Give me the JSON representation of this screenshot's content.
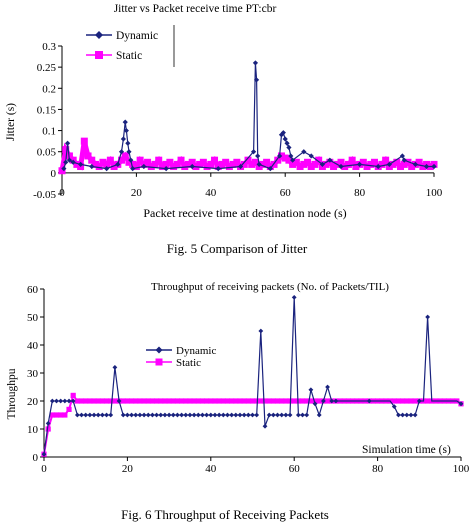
{
  "colors": {
    "dynamic": "#1a237e",
    "static": "#ff00ff",
    "axis": "#000000"
  },
  "figure1": {
    "caption": "Fig. 5  Comparison of Jitter",
    "chart_data": {
      "type": "scatter",
      "title": "Jitter vs  Packet receive time  PT:cbr",
      "xlabel": "Packet receive time at destination node (s)",
      "ylabel": "Jitter (s)",
      "xlim": [
        0,
        100
      ],
      "ylim": [
        -0.05,
        0.3
      ],
      "xticks": [
        "0",
        "20",
        "40",
        "60",
        "80",
        "100"
      ],
      "yticks": [
        "-0.05",
        "0",
        "0.05",
        "0.1",
        "0.15",
        "0.2",
        "0.25",
        "0.3"
      ],
      "legend_position": "top-right",
      "series": [
        {
          "name": "Dynamic",
          "x": [
            0.5,
            1,
            1.5,
            2,
            3,
            5,
            8,
            12,
            15,
            16,
            16.5,
            17,
            17.3,
            17.7,
            18,
            18.5,
            19,
            22,
            28,
            35,
            42,
            48,
            51.5,
            52,
            52.3,
            52.6,
            53,
            56,
            58.5,
            59,
            59.5,
            60,
            60.5,
            61,
            61.5,
            62,
            65,
            67,
            70,
            72,
            75,
            80,
            85,
            88,
            91.5,
            92,
            95,
            98,
            100
          ],
          "y": [
            0.01,
            0.025,
            0.07,
            0.03,
            0.025,
            0.02,
            0.015,
            0.01,
            0.02,
            0.05,
            0.08,
            0.12,
            0.1,
            0.07,
            0.05,
            0.03,
            0.01,
            0.015,
            0.01,
            0.015,
            0.01,
            0.015,
            0.05,
            0.26,
            0.22,
            0.04,
            0.02,
            0.01,
            0.04,
            0.09,
            0.095,
            0.08,
            0.07,
            0.06,
            0.04,
            0.03,
            0.05,
            0.04,
            0.02,
            0.03,
            0.015,
            0.02,
            0.015,
            0.02,
            0.04,
            0.03,
            0.02,
            0.015,
            0.015
          ]
        },
        {
          "name": "Static",
          "x": [
            0,
            1,
            2,
            3,
            4,
            5,
            6,
            7,
            8,
            9,
            10,
            11,
            12,
            13,
            14,
            15,
            16,
            17,
            18,
            19,
            20,
            21,
            22,
            23,
            24,
            25,
            26,
            27,
            28,
            29,
            30,
            31,
            32,
            33,
            34,
            35,
            36,
            37,
            38,
            39,
            40,
            41,
            42,
            43,
            44,
            45,
            46,
            47,
            48,
            49,
            50,
            51,
            52,
            53,
            54,
            55,
            56,
            57,
            58,
            59,
            60,
            61,
            62,
            63,
            64,
            65,
            66,
            67,
            68,
            69,
            70,
            71,
            72,
            73,
            74,
            75,
            76,
            77,
            78,
            79,
            80,
            81,
            82,
            83,
            84,
            85,
            86,
            87,
            88,
            89,
            90,
            91,
            92,
            93,
            94,
            95,
            96,
            97,
            98,
            99,
            100
          ],
          "y": [
            0.005,
            0.055,
            0.04,
            0.03,
            0.02,
            0.015,
            0.075,
            0.04,
            0.03,
            0.02,
            0.015,
            0.025,
            0.02,
            0.03,
            0.015,
            0.02,
            0.03,
            0.04,
            0.025,
            0.02,
            0.015,
            0.03,
            0.02,
            0.025,
            0.015,
            0.02,
            0.03,
            0.015,
            0.02,
            0.025,
            0.015,
            0.02,
            0.03,
            0.015,
            0.02,
            0.025,
            0.015,
            0.02,
            0.025,
            0.015,
            0.02,
            0.03,
            0.015,
            0.02,
            0.025,
            0.015,
            0.02,
            0.025,
            0.015,
            0.02,
            0.03,
            0.02,
            0.025,
            0.015,
            0.02,
            0.025,
            0.015,
            0.02,
            0.03,
            0.04,
            0.035,
            0.03,
            0.02,
            0.025,
            0.015,
            0.02,
            0.025,
            0.015,
            0.02,
            0.03,
            0.015,
            0.02,
            0.025,
            0.015,
            0.02,
            0.025,
            0.015,
            0.02,
            0.03,
            0.015,
            0.02,
            0.025,
            0.015,
            0.02,
            0.025,
            0.015,
            0.02,
            0.03,
            0.015,
            0.02,
            0.025,
            0.015,
            0.02,
            0.025,
            0.015,
            0.02,
            0.025,
            0.015,
            0.02,
            0.015,
            0.02
          ]
        }
      ]
    }
  },
  "figure2": {
    "caption": "Fig. 6  Throughput of Receiving Packets",
    "chart_data": {
      "type": "line",
      "title": "Throughput of receiving packets (No. of Packets/TIL)",
      "xlabel": "Simulation time (s)",
      "ylabel": "Throughpu",
      "xlim": [
        0,
        100
      ],
      "ylim": [
        0,
        60
      ],
      "xticks": [
        "0",
        "20",
        "40",
        "60",
        "80",
        "100"
      ],
      "yticks": [
        "0",
        "10",
        "20",
        "30",
        "40",
        "50",
        "60"
      ],
      "legend_position": "center-right",
      "series": [
        {
          "name": "Dynamic",
          "x": [
            0,
            1,
            2,
            3,
            4,
            5,
            6,
            7,
            8,
            9,
            10,
            11,
            12,
            13,
            14,
            15,
            16,
            17,
            18,
            19,
            20,
            21,
            22,
            23,
            24,
            25,
            26,
            27,
            28,
            29,
            30,
            31,
            32,
            33,
            34,
            35,
            36,
            37,
            38,
            39,
            40,
            41,
            42,
            43,
            44,
            45,
            46,
            47,
            48,
            49,
            50,
            51,
            52,
            53,
            54,
            55,
            56,
            57,
            58,
            59,
            60,
            61,
            62,
            63,
            64,
            65,
            66,
            67,
            68,
            69,
            70,
            71,
            72,
            73,
            74,
            75,
            76,
            77,
            78,
            79,
            80,
            81,
            82,
            83,
            84,
            85,
            86,
            87,
            88,
            89,
            90,
            91,
            92,
            93,
            94,
            95,
            96,
            97,
            98,
            99,
            100
          ],
          "y": [
            1,
            12,
            20,
            20,
            20,
            20,
            20,
            20,
            15,
            15,
            15,
            15,
            15,
            15,
            15,
            15,
            15,
            32,
            20,
            15,
            15,
            15,
            15,
            15,
            15,
            15,
            15,
            15,
            15,
            15,
            15,
            15,
            15,
            15,
            15,
            15,
            15,
            15,
            15,
            15,
            15,
            15,
            15,
            15,
            15,
            15,
            15,
            15,
            15,
            15,
            15,
            15,
            45,
            11,
            15,
            15,
            15,
            15,
            15,
            15,
            57,
            15,
            15,
            15,
            24,
            19,
            15,
            20,
            25,
            20,
            20,
            20,
            20,
            20,
            20,
            20,
            20,
            20,
            20,
            20,
            20,
            20,
            20,
            20,
            18,
            15,
            15,
            15,
            15,
            15,
            20,
            20,
            50,
            20,
            20,
            20,
            20,
            20,
            20,
            20,
            19
          ],
          "markers_x": [
            0,
            1,
            2,
            3,
            4,
            5,
            6,
            7,
            8,
            9,
            10,
            11,
            12,
            13,
            14,
            15,
            16,
            17,
            18,
            19,
            20,
            21,
            22,
            23,
            24,
            25,
            26,
            27,
            28,
            29,
            30,
            31,
            32,
            33,
            34,
            35,
            36,
            37,
            38,
            39,
            40,
            41,
            42,
            43,
            44,
            45,
            46,
            47,
            48,
            49,
            50,
            51,
            52,
            53,
            54,
            55,
            56,
            57,
            58,
            59,
            60,
            61,
            62,
            63,
            64,
            65,
            66,
            67,
            68,
            69,
            70,
            78,
            84,
            85,
            86,
            87,
            88,
            89,
            90,
            92,
            100
          ]
        },
        {
          "name": "Static",
          "x": [
            0,
            1,
            2,
            3,
            4,
            5,
            6,
            7,
            8,
            9,
            10,
            11,
            12,
            13,
            14,
            15,
            16,
            17,
            18,
            19,
            20,
            21,
            22,
            23,
            24,
            25,
            26,
            27,
            28,
            29,
            30,
            31,
            32,
            33,
            34,
            35,
            36,
            37,
            38,
            39,
            40,
            41,
            42,
            43,
            44,
            45,
            46,
            47,
            48,
            49,
            50,
            51,
            52,
            53,
            54,
            55,
            56,
            57,
            58,
            59,
            60,
            61,
            62,
            63,
            64,
            65,
            66,
            67,
            68,
            69,
            70,
            71,
            72,
            73,
            74,
            75,
            76,
            77,
            78,
            79,
            80,
            81,
            82,
            83,
            84,
            85,
            86,
            87,
            88,
            89,
            90,
            91,
            92,
            93,
            94,
            95,
            96,
            97,
            98,
            99,
            100
          ],
          "y": [
            1,
            10,
            15,
            15,
            15,
            15,
            17,
            22,
            20,
            20,
            20,
            20,
            20,
            20,
            20,
            20,
            20,
            20,
            20,
            20,
            20,
            20,
            20,
            20,
            20,
            20,
            20,
            20,
            20,
            20,
            20,
            20,
            20,
            20,
            20,
            20,
            20,
            20,
            20,
            20,
            20,
            20,
            20,
            20,
            20,
            20,
            20,
            20,
            20,
            20,
            20,
            20,
            20,
            20,
            20,
            20,
            20,
            20,
            20,
            20,
            20,
            20,
            20,
            20,
            20,
            20,
            20,
            20,
            20,
            20,
            20,
            20,
            20,
            20,
            20,
            20,
            20,
            20,
            20,
            20,
            20,
            20,
            20,
            20,
            20,
            20,
            20,
            20,
            20,
            20,
            20,
            20,
            20,
            20,
            20,
            20,
            20,
            20,
            20,
            20,
            19
          ]
        }
      ]
    }
  }
}
